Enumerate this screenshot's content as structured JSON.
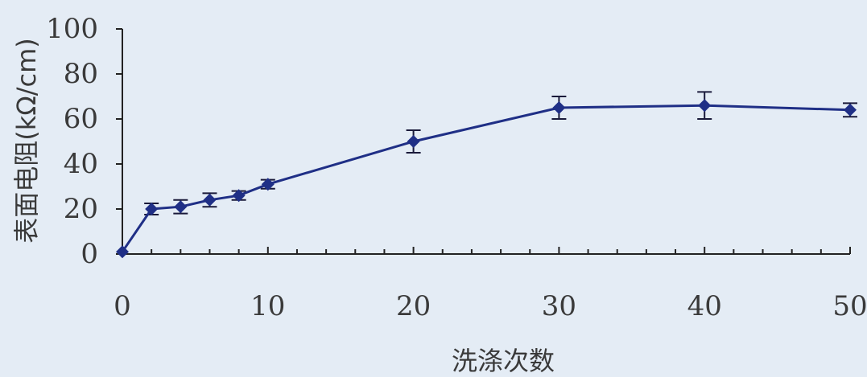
{
  "chart_data": {
    "type": "line",
    "title": "",
    "xlabel": "洗涤次数",
    "ylabel": "表面电阻(kΩ/cm)",
    "xlim": [
      0,
      50
    ],
    "ylim": [
      0,
      100
    ],
    "x_ticks": [
      0,
      10,
      20,
      30,
      40,
      50
    ],
    "y_ticks": [
      0,
      20,
      40,
      60,
      80,
      100
    ],
    "grid": false,
    "legend": "none",
    "colors": {
      "line": "#1f2f86",
      "marker": "#1f2f86",
      "axis": "#222222",
      "text": "#3a3a3a",
      "background": "#e4ecf5"
    },
    "series": [
      {
        "x": [
          0,
          2,
          4,
          6,
          8,
          10,
          20,
          30,
          40,
          50
        ],
        "y": [
          1,
          20,
          21,
          24,
          26,
          31,
          50,
          65,
          66,
          64
        ],
        "error": [
          0,
          2.5,
          3,
          3,
          2,
          2,
          5,
          5,
          6,
          3
        ]
      }
    ]
  }
}
